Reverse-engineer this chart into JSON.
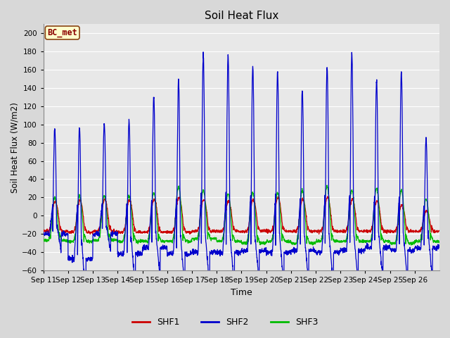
{
  "title": "Soil Heat Flux",
  "xlabel": "Time",
  "ylabel": "Soil Heat Flux (W/m2)",
  "ylim": [
    -60,
    210
  ],
  "yticks": [
    -60,
    -40,
    -20,
    0,
    20,
    40,
    60,
    80,
    100,
    120,
    140,
    160,
    180,
    200
  ],
  "bg_color": "#d8d8d8",
  "plot_bg": "#e8e8e8",
  "grid_color": "#ffffff",
  "shf1_color": "#cc0000",
  "shf2_color": "#0000cc",
  "shf3_color": "#00bb00",
  "legend_box_facecolor": "#ffffcc",
  "legend_box_edge": "#8b4513",
  "station_label": "BC_met",
  "legend_labels": [
    "SHF1",
    "SHF2",
    "SHF3"
  ],
  "start_day": 11,
  "end_day": 26,
  "n_days": 16,
  "points_per_day": 144,
  "shf2_peaks": [
    95,
    97,
    101,
    105,
    130,
    148,
    177,
    176,
    163,
    158,
    137,
    163,
    179,
    148,
    158,
    84
  ],
  "shf2_nights": [
    -20,
    -47,
    -20,
    -42,
    -35,
    -42,
    -40,
    -40,
    -38,
    -40,
    -38,
    -40,
    -38,
    -35,
    -38,
    -35
  ],
  "shf1_peaks": [
    16,
    17,
    18,
    17,
    18,
    20,
    18,
    16,
    18,
    20,
    18,
    20,
    18,
    16,
    12,
    5
  ],
  "shf1_nights": [
    -17,
    -18,
    -17,
    -18,
    -18,
    -18,
    -17,
    -17,
    -17,
    -17,
    -17,
    -17,
    -17,
    -17,
    -17,
    -17
  ],
  "shf3_peaks": [
    20,
    22,
    22,
    22,
    25,
    32,
    28,
    24,
    25,
    25,
    28,
    32,
    28,
    30,
    28,
    18
  ],
  "shf3_nights": [
    -27,
    -28,
    -27,
    -28,
    -28,
    -28,
    -25,
    -28,
    -30,
    -28,
    -30,
    -28,
    -28,
    -28,
    -30,
    -28
  ]
}
